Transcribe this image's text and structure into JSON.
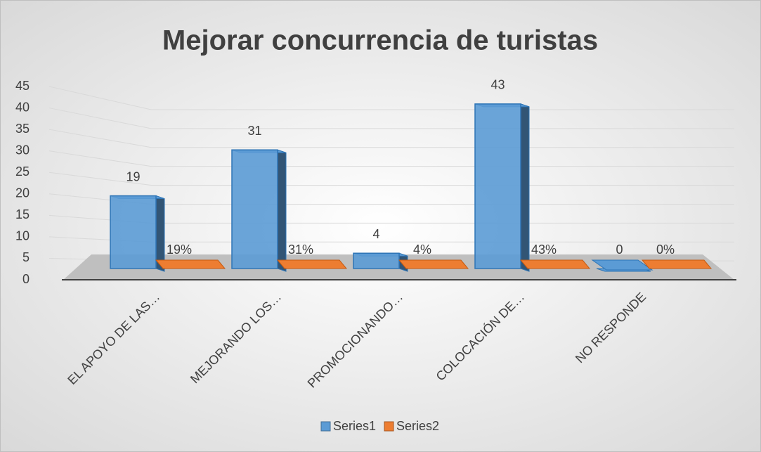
{
  "chart_data": {
    "type": "bar3d",
    "title": "Mejorar concurrencia de turistas",
    "categories": [
      "EL APOYO DE LAS…",
      "MEJORANDO LOS…",
      "PROMOCIONANDO…",
      "COLOCACIÓN DE…",
      "NO RESPONDE"
    ],
    "series": [
      {
        "name": "Series1",
        "color": "#5b9bd5",
        "values": [
          19,
          31,
          4,
          43,
          0
        ]
      },
      {
        "name": "Series2",
        "color": "#ed7d31",
        "values": [
          0.19,
          0.31,
          0.04,
          0.43,
          0
        ],
        "value_labels": [
          "19%",
          "31%",
          "4%",
          "43%",
          "0%"
        ]
      }
    ],
    "ylim": [
      0,
      45
    ],
    "yticks": [
      0,
      5,
      10,
      15,
      20,
      25,
      30,
      35,
      40,
      45
    ],
    "grid": true,
    "legend": "bottom"
  }
}
